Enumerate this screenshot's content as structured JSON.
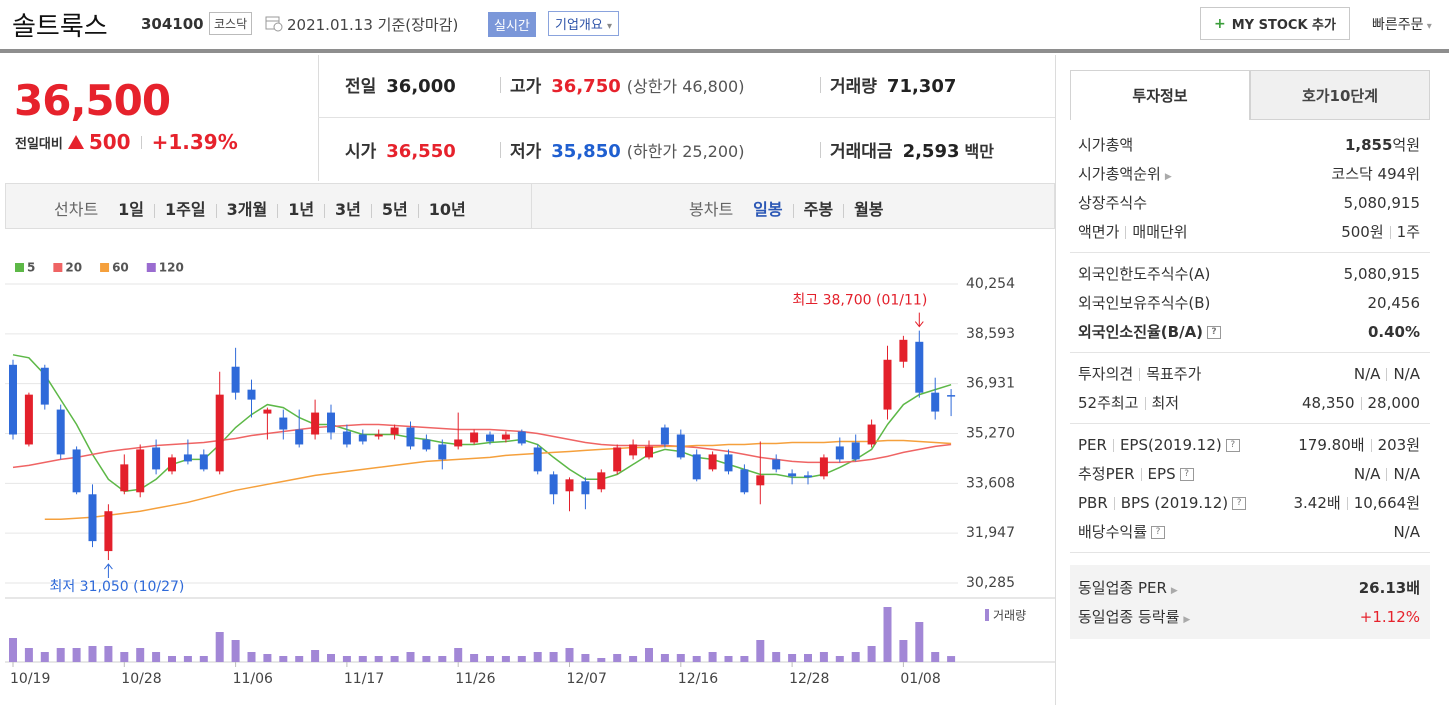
{
  "header": {
    "name": "솔트룩스",
    "code": "304100",
    "market": "코스닥",
    "date": "2021.01.13",
    "basis": "기준(장마감)",
    "realtime": "실시간",
    "overview": "기업개요",
    "my_stock": "MY STOCK 추가",
    "quick_order": "빠른주문"
  },
  "quote": {
    "price": "36,500",
    "change_label": "전일대비",
    "change": "500",
    "change_rate": "+1.39%",
    "rows": [
      [
        {
          "label": "전일",
          "value": "36,000"
        },
        {
          "label": "고가",
          "value": "36,750",
          "note": "(상한가 46,800)",
          "color": "red"
        },
        {
          "label": "거래량",
          "value": "71,307"
        }
      ],
      [
        {
          "label": "시가",
          "value": "36,550",
          "color": "red"
        },
        {
          "label": "저가",
          "value": "35,850",
          "note": "(하한가 25,200)",
          "color": "blue"
        },
        {
          "label": "거래대금",
          "value": "2,593",
          "unit": "백만"
        }
      ]
    ]
  },
  "periods": {
    "line_label": "선차트",
    "line": [
      "1일",
      "1주일",
      "3개월",
      "1년",
      "3년",
      "5년",
      "10년"
    ],
    "candle_label": "봉차트",
    "candle": [
      "일봉",
      "주봉",
      "월봉"
    ],
    "candle_active": 0
  },
  "chart_data": {
    "type": "candlestick",
    "categories": [
      "10/19",
      null,
      null,
      null,
      null,
      null,
      null,
      "10/28",
      null,
      null,
      null,
      null,
      null,
      null,
      "11/06",
      null,
      null,
      null,
      null,
      null,
      null,
      "11/17",
      null,
      null,
      null,
      null,
      null,
      null,
      "11/26",
      null,
      null,
      null,
      null,
      null,
      null,
      "12/07",
      null,
      null,
      null,
      null,
      null,
      null,
      "12/16",
      null,
      null,
      null,
      null,
      null,
      null,
      "12/28",
      null,
      null,
      null,
      null,
      null,
      null,
      "01/08",
      null,
      null,
      null
    ],
    "open": [
      37560,
      34904,
      37462,
      36067,
      34738,
      33243,
      31349,
      33343,
      33309,
      34804,
      34007,
      34572,
      34572,
      34007,
      37496,
      36731,
      35934,
      35801,
      35402,
      35236,
      35967,
      35336,
      35236,
      35170,
      35236,
      35469,
      35070,
      34904,
      34838,
      34971,
      35236,
      35070,
      35336,
      34804,
      33907,
      33343,
      33675,
      33409,
      34007,
      34539,
      34472,
      35469,
      35236,
      34572,
      34073,
      34572,
      34073,
      33542,
      34406,
      33940,
      33874,
      33841,
      34838,
      34971,
      34904,
      36067,
      37662,
      38327,
      36631,
      36550
    ],
    "high": [
      37728,
      36632,
      37562,
      36233,
      34838,
      33575,
      32910,
      34572,
      34904,
      35070,
      34572,
      35070,
      34738,
      37329,
      38127,
      37064,
      36133,
      36067,
      36067,
      36399,
      36233,
      35568,
      35402,
      35402,
      35568,
      35668,
      35236,
      35070,
      35967,
      35402,
      35336,
      35336,
      35402,
      34904,
      34007,
      33807,
      33807,
      34073,
      34904,
      35070,
      35036,
      35568,
      35402,
      34738,
      34671,
      34738,
      34240,
      35004,
      34572,
      34073,
      34007,
      34572,
      35137,
      35236,
      35735,
      38194,
      38526,
      38700,
      37130,
      36750
    ],
    "low": [
      35070,
      34838,
      36067,
      34406,
      33243,
      31481,
      31050,
      33243,
      33143,
      33907,
      33907,
      34240,
      34007,
      33907,
      36399,
      35801,
      35070,
      35070,
      34804,
      35070,
      35070,
      34804,
      34904,
      35070,
      35070,
      34738,
      34671,
      34073,
      34738,
      34904,
      34904,
      34971,
      34871,
      33907,
      32910,
      32678,
      32744,
      33309,
      33907,
      34406,
      34406,
      34804,
      34406,
      33675,
      34007,
      33907,
      33243,
      32910,
      33974,
      33575,
      33575,
      33741,
      34306,
      34339,
      34804,
      35735,
      37462,
      36465,
      35735,
      35850
    ],
    "close": [
      35236,
      36565,
      36233,
      34572,
      33309,
      31681,
      32678,
      34240,
      34738,
      34073,
      34472,
      34339,
      34073,
      36565,
      36631,
      36399,
      36067,
      35402,
      34904,
      35967,
      35302,
      34904,
      35004,
      35236,
      35469,
      34838,
      34738,
      34406,
      35070,
      35302,
      35004,
      35236,
      34938,
      34007,
      33243,
      33741,
      33243,
      33974,
      34804,
      34904,
      34838,
      34904,
      34472,
      33741,
      34572,
      34007,
      33309,
      33874,
      34073,
      33841,
      33807,
      34472,
      34406,
      34406,
      35568,
      37728,
      38393,
      36631,
      36001,
      36500
    ],
    "volume": [
      288000,
      168000,
      120000,
      168000,
      168000,
      192000,
      192000,
      120000,
      168000,
      120000,
      72000,
      72000,
      72000,
      360000,
      264000,
      120000,
      96000,
      72000,
      72000,
      144000,
      96000,
      72000,
      72000,
      72000,
      72000,
      120000,
      72000,
      72000,
      168000,
      96000,
      72000,
      72000,
      72000,
      120000,
      120000,
      168000,
      96000,
      48000,
      96000,
      72000,
      168000,
      96000,
      96000,
      72000,
      120000,
      72000,
      72000,
      264000,
      120000,
      96000,
      96000,
      120000,
      72000,
      120000,
      192000,
      660000,
      264000,
      480000,
      120000,
      71307
    ],
    "up_color": "#e3202b",
    "down_color": "#2f6ad9",
    "volume_color": "#a287d6",
    "volume_label": "거래량",
    "series": [
      {
        "name": "5",
        "color": "#5db847",
        "values": [
          37895,
          37795,
          37230,
          36399,
          35569,
          34572,
          33741,
          33342,
          33409,
          33741,
          34239,
          34406,
          34406,
          34904,
          35469,
          35901,
          36233,
          36133,
          35801,
          35569,
          35569,
          35402,
          35236,
          35236,
          35236,
          35137,
          35070,
          34970,
          34904,
          34904,
          34970,
          35004,
          35070,
          34904,
          34472,
          34073,
          33741,
          33741,
          33907,
          34239,
          34572,
          34738,
          34671,
          34472,
          34406,
          34239,
          34073,
          33907,
          33907,
          33807,
          33807,
          33907,
          34140,
          34406,
          34738,
          35569,
          36233,
          36565,
          36732,
          36898
        ]
      },
      {
        "name": "20",
        "color": "#ef6464",
        "values": [
          34140,
          34206,
          34306,
          34406,
          34472,
          34572,
          34671,
          34738,
          34804,
          34871,
          34904,
          34937,
          34970,
          35037,
          35103,
          35203,
          35269,
          35336,
          35402,
          35469,
          35502,
          35535,
          35569,
          35569,
          35535,
          35502,
          35469,
          35436,
          35402,
          35402,
          35402,
          35369,
          35336,
          35269,
          35170,
          35070,
          34970,
          34904,
          34871,
          34871,
          34871,
          34871,
          34838,
          34804,
          34738,
          34671,
          34572,
          34472,
          34406,
          34339,
          34306,
          34306,
          34306,
          34339,
          34406,
          34505,
          34638,
          34738,
          34838,
          34904
        ]
      },
      {
        "name": "60",
        "color": "#f5a03c",
        "values": [
          null,
          null,
          32412,
          32412,
          32445,
          32478,
          32545,
          32611,
          32678,
          32777,
          32877,
          32977,
          33110,
          33242,
          33375,
          33475,
          33575,
          33674,
          33774,
          33874,
          33940,
          34007,
          34073,
          34140,
          34206,
          34273,
          34339,
          34372,
          34406,
          34439,
          34472,
          34538,
          34572,
          34605,
          34638,
          34671,
          34705,
          34738,
          34771,
          34804,
          34804,
          34838,
          34838,
          34871,
          34871,
          34904,
          34904,
          34937,
          34937,
          34970,
          34970,
          34970,
          35004,
          35004,
          35004,
          35037,
          35037,
          35004,
          34970,
          34937
        ]
      },
      {
        "name": "120",
        "color": "#9a6cd0",
        "values": [
          null,
          null,
          null,
          null,
          null,
          null,
          null,
          null,
          null,
          null,
          null,
          null,
          null,
          null,
          null,
          null,
          null,
          null,
          null,
          null,
          null,
          null,
          null,
          null,
          null,
          null,
          null,
          null,
          null,
          null,
          null,
          null,
          null,
          null,
          null,
          null,
          null,
          null,
          null,
          null,
          null,
          null,
          null,
          null,
          null,
          null,
          null,
          null,
          null,
          null,
          null,
          null,
          null,
          null,
          null,
          null,
          null,
          null,
          null,
          null
        ]
      }
    ],
    "ylim": [
      30285,
      40254
    ],
    "yticks": [
      {
        "value": 30285,
        "label": "30,285"
      },
      {
        "value": 31947,
        "label": "31,947"
      },
      {
        "value": 33608,
        "label": "33,608"
      },
      {
        "value": 35270,
        "label": "35,270"
      },
      {
        "value": 36931,
        "label": "36,931"
      },
      {
        "value": 38593,
        "label": "38,593"
      },
      {
        "value": 40254,
        "label": "40,254"
      }
    ],
    "grid": true,
    "annotations": {
      "high": "최고 38,700 (01/11)",
      "low": "최저 31,050 (10/27)"
    }
  },
  "info": {
    "tabs": [
      "투자정보",
      "호가10단계"
    ],
    "sections": [
      [
        {
          "label": [
            "시가총액"
          ],
          "value": [
            "1,855"
          ],
          "unit": "억원",
          "strong_value": true
        },
        {
          "label": [
            "시가총액순위"
          ],
          "icon": "arrow",
          "value": [
            "코스닥 494위"
          ]
        },
        {
          "label": [
            "상장주식수"
          ],
          "value": [
            "5,080,915"
          ]
        },
        {
          "label": [
            "액면가",
            "매매단위"
          ],
          "value": [
            "500원",
            "1주"
          ]
        }
      ],
      [
        {
          "label": [
            "외국인한도주식수(A)"
          ],
          "value": [
            "5,080,915"
          ]
        },
        {
          "label": [
            "외국인보유주식수(B)"
          ],
          "value": [
            "20,456"
          ]
        },
        {
          "label": [
            "외국인소진율(B/A)"
          ],
          "icon": "help",
          "value": [
            "0.40%"
          ],
          "strong_value": true
        },
        {
          "label": [],
          "value": []
        }
      ],
      [
        {
          "label": [
            "투자의견",
            "목표주가"
          ],
          "value": [
            "N/A",
            "N/A"
          ]
        },
        {
          "label": [
            "52주최고",
            "최저"
          ],
          "value": [
            "48,350",
            "28,000"
          ]
        }
      ],
      [
        {
          "label": [
            "PER",
            "EPS(2019.12)"
          ],
          "icon": "help",
          "value": [
            "179.80배",
            "203원"
          ]
        },
        {
          "label": [
            "추정PER",
            "EPS"
          ],
          "icon": "help",
          "value": [
            "N/A",
            "N/A"
          ]
        },
        {
          "label": [
            "PBR",
            "BPS (2019.12)"
          ],
          "icon": "help",
          "value": [
            "3.42배",
            "10,664원"
          ]
        },
        {
          "label": [
            "배당수익률"
          ],
          "icon": "help",
          "value": [
            "N/A"
          ]
        }
      ]
    ],
    "peer": [
      {
        "label": [
          "동일업종 PER"
        ],
        "icon": "arrow",
        "value": [
          "26.13배"
        ],
        "strong_value": true
      },
      {
        "label": [
          "동일업종 등락률"
        ],
        "icon": "arrow",
        "value": [
          "+1.12%"
        ],
        "color": "red"
      }
    ]
  }
}
